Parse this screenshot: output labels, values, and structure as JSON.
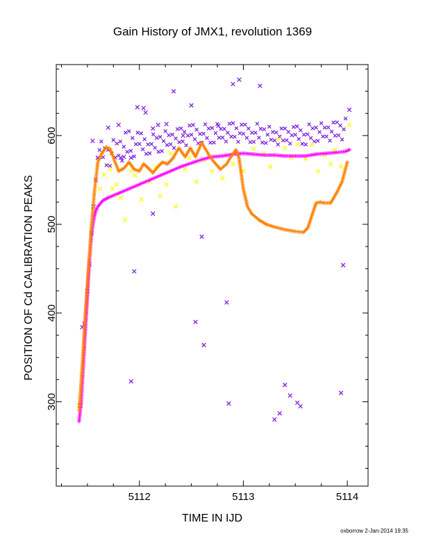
{
  "chart_data": {
    "type": "scatter",
    "title": "Gain History of JMX1, revolution 1369",
    "xlabel": "TIME IN IJD",
    "ylabel": "POSITION OF Cd CALIBRATION PEAKS",
    "xlim": [
      5111.2,
      5114.2
    ],
    "ylim": [
      205,
      680
    ],
    "xticks": [
      5112,
      5113,
      5114
    ],
    "yticks": [
      300,
      400,
      500,
      600
    ],
    "grid": false,
    "legend": "none",
    "credit": "oxborrow  2-Jan-2014 19:35",
    "series": [
      {
        "color": "#7f22e0",
        "marker": "x",
        "points": [
          [
            5111.43,
            296
          ],
          [
            5111.45,
            384
          ],
          [
            5111.47,
            388
          ],
          [
            5111.5,
            425
          ],
          [
            5111.52,
            455
          ],
          [
            5111.54,
            490
          ],
          [
            5111.56,
            520
          ],
          [
            5111.58,
            550
          ],
          [
            5111.6,
            575
          ],
          [
            5111.55,
            594
          ],
          [
            5111.7,
            609
          ],
          [
            5111.8,
            612
          ],
          [
            5111.82,
            575
          ],
          [
            5111.85,
            576
          ],
          [
            5111.92,
            575
          ],
          [
            5111.92,
            323
          ],
          [
            5111.95,
            447
          ],
          [
            5111.98,
            632
          ],
          [
            5112.04,
            631
          ],
          [
            5112.06,
            626
          ],
          [
            5112.13,
            608
          ],
          [
            5112.13,
            512
          ],
          [
            5112.18,
            612
          ],
          [
            5112.26,
            613
          ],
          [
            5112.33,
            650
          ],
          [
            5112.42,
            600
          ],
          [
            5112.5,
            634
          ],
          [
            5112.54,
            390
          ],
          [
            5112.6,
            486
          ],
          [
            5112.62,
            364
          ],
          [
            5112.76,
            611
          ],
          [
            5112.84,
            412
          ],
          [
            5112.86,
            298
          ],
          [
            5112.9,
            658
          ],
          [
            5112.96,
            663
          ],
          [
            5113.16,
            656
          ],
          [
            5113.3,
            280
          ],
          [
            5113.35,
            287
          ],
          [
            5113.4,
            319
          ],
          [
            5113.45,
            307
          ],
          [
            5113.52,
            299
          ],
          [
            5113.55,
            295
          ],
          [
            5113.94,
            310
          ],
          [
            5113.96,
            454
          ],
          [
            5114.02,
            629
          ]
        ],
        "band": [
          [
            5111.6,
            575,
            595
          ],
          [
            5111.7,
            565,
            590
          ],
          [
            5111.8,
            570,
            600
          ],
          [
            5111.9,
            575,
            605
          ],
          [
            5112.0,
            578,
            603
          ],
          [
            5112.1,
            580,
            600
          ],
          [
            5112.2,
            582,
            604
          ],
          [
            5112.3,
            585,
            606
          ],
          [
            5112.4,
            588,
            608
          ],
          [
            5112.5,
            590,
            612
          ],
          [
            5112.6,
            592,
            612
          ],
          [
            5112.7,
            592,
            614
          ],
          [
            5112.8,
            593,
            612
          ],
          [
            5112.9,
            594,
            614
          ],
          [
            5113.0,
            592,
            612
          ],
          [
            5113.1,
            593,
            614
          ],
          [
            5113.2,
            592,
            612
          ],
          [
            5113.3,
            590,
            608
          ],
          [
            5113.4,
            590,
            608
          ],
          [
            5113.5,
            592,
            610
          ],
          [
            5113.6,
            590,
            612
          ],
          [
            5113.7,
            594,
            614
          ],
          [
            5113.8,
            594,
            614
          ],
          [
            5113.9,
            595,
            615
          ],
          [
            5114.0,
            596,
            620
          ]
        ]
      },
      {
        "color": "#ffff00",
        "marker": "x",
        "points": [
          [
            5111.44,
            300
          ],
          [
            5111.47,
            360
          ],
          [
            5111.5,
            420
          ],
          [
            5111.53,
            470
          ],
          [
            5111.56,
            515
          ],
          [
            5111.62,
            540
          ],
          [
            5111.66,
            556
          ],
          [
            5111.72,
            562
          ],
          [
            5111.78,
            545
          ],
          [
            5111.82,
            530
          ],
          [
            5111.86,
            505
          ],
          [
            5111.92,
            560
          ],
          [
            5111.96,
            555
          ],
          [
            5112.02,
            528
          ],
          [
            5112.1,
            548
          ],
          [
            5112.2,
            532
          ],
          [
            5112.26,
            545
          ],
          [
            5112.35,
            520
          ],
          [
            5112.44,
            562
          ],
          [
            5112.48,
            575
          ],
          [
            5112.55,
            548
          ],
          [
            5112.62,
            572
          ],
          [
            5112.7,
            560
          ],
          [
            5112.8,
            552
          ],
          [
            5112.9,
            568
          ],
          [
            5113.0,
            560
          ],
          [
            5113.1,
            585
          ],
          [
            5113.2,
            580
          ],
          [
            5113.26,
            565
          ],
          [
            5113.34,
            596
          ],
          [
            5113.4,
            586
          ],
          [
            5113.46,
            575
          ],
          [
            5113.52,
            590
          ],
          [
            5113.6,
            574
          ],
          [
            5113.66,
            590
          ],
          [
            5113.72,
            560
          ],
          [
            5113.78,
            578
          ],
          [
            5113.84,
            568
          ],
          [
            5113.88,
            584
          ],
          [
            5113.94,
            565
          ],
          [
            5114.02,
            612
          ],
          [
            5112.3,
            580
          ],
          [
            5112.16,
            565
          ],
          [
            5111.74,
            540
          ]
        ]
      },
      {
        "color": "#ff00ff",
        "marker": "+",
        "points": [
          [
            5111.42,
            278
          ],
          [
            5111.44,
            300
          ],
          [
            5111.46,
            340
          ],
          [
            5111.48,
            380
          ],
          [
            5111.5,
            420
          ],
          [
            5111.52,
            460
          ],
          [
            5111.54,
            490
          ],
          [
            5111.56,
            505
          ],
          [
            5111.58,
            515
          ],
          [
            5111.6,
            520
          ],
          [
            5111.65,
            527
          ],
          [
            5111.7,
            530
          ],
          [
            5111.8,
            535
          ],
          [
            5111.9,
            540
          ],
          [
            5112.0,
            545
          ],
          [
            5112.1,
            550
          ],
          [
            5112.2,
            555
          ],
          [
            5112.3,
            560
          ],
          [
            5112.4,
            565
          ],
          [
            5112.5,
            569
          ],
          [
            5112.6,
            573
          ],
          [
            5112.7,
            576
          ],
          [
            5112.8,
            577
          ],
          [
            5112.9,
            579
          ],
          [
            5113.0,
            580
          ],
          [
            5113.1,
            579
          ],
          [
            5113.2,
            578
          ],
          [
            5113.3,
            578
          ],
          [
            5113.4,
            577
          ],
          [
            5113.5,
            577
          ],
          [
            5113.6,
            577
          ],
          [
            5113.7,
            579
          ],
          [
            5113.8,
            580
          ],
          [
            5113.9,
            581
          ],
          [
            5113.98,
            582
          ],
          [
            5114.02,
            584
          ]
        ]
      },
      {
        "color": "#ff8000",
        "marker": "+",
        "points": [
          [
            5111.42,
            290
          ],
          [
            5111.45,
            340
          ],
          [
            5111.48,
            400
          ],
          [
            5111.51,
            450
          ],
          [
            5111.54,
            500
          ],
          [
            5111.57,
            540
          ],
          [
            5111.6,
            570
          ],
          [
            5111.64,
            580
          ],
          [
            5111.68,
            587
          ],
          [
            5111.72,
            585
          ],
          [
            5111.76,
            572
          ],
          [
            5111.8,
            560
          ],
          [
            5111.85,
            563
          ],
          [
            5111.9,
            570
          ],
          [
            5111.95,
            562
          ],
          [
            5112.0,
            560
          ],
          [
            5112.04,
            568
          ],
          [
            5112.08,
            564
          ],
          [
            5112.13,
            558
          ],
          [
            5112.18,
            565
          ],
          [
            5112.22,
            570
          ],
          [
            5112.27,
            568
          ],
          [
            5112.32,
            574
          ],
          [
            5112.38,
            586
          ],
          [
            5112.44,
            576
          ],
          [
            5112.49,
            586
          ],
          [
            5112.54,
            576
          ],
          [
            5112.6,
            592
          ],
          [
            5112.64,
            584
          ],
          [
            5112.68,
            576
          ],
          [
            5112.72,
            570
          ],
          [
            5112.78,
            562
          ],
          [
            5112.84,
            568
          ],
          [
            5112.88,
            576
          ],
          [
            5112.93,
            584
          ],
          [
            5112.96,
            574
          ],
          [
            5113.0,
            540
          ],
          [
            5113.04,
            520
          ],
          [
            5113.08,
            512
          ],
          [
            5113.15,
            505
          ],
          [
            5113.22,
            500
          ],
          [
            5113.3,
            497
          ],
          [
            5113.4,
            494
          ],
          [
            5113.5,
            492
          ],
          [
            5113.58,
            491
          ],
          [
            5113.62,
            496
          ],
          [
            5113.66,
            510
          ],
          [
            5113.7,
            524
          ],
          [
            5113.74,
            525
          ],
          [
            5113.78,
            524
          ],
          [
            5113.84,
            524
          ],
          [
            5113.9,
            536
          ],
          [
            5113.95,
            548
          ],
          [
            5114.0,
            570
          ]
        ]
      }
    ]
  }
}
